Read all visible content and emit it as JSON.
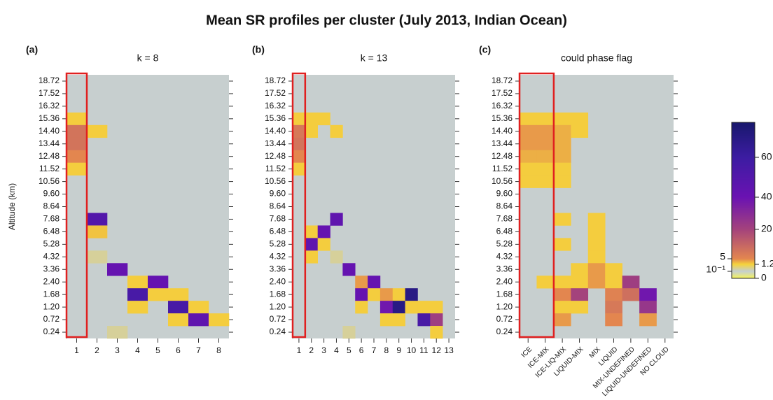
{
  "title": "Mean SR profiles per cluster (July 2013, Indian Ocean)",
  "chart_data": [
    {
      "type": "heatmap",
      "panel_label": "(a)",
      "title": "k = 8",
      "ylabel": "Altitude (km)",
      "categories": [
        1,
        2,
        3,
        4,
        5,
        6,
        7,
        8
      ],
      "rows": [
        "18.72",
        "17.52",
        "16.32",
        "15.36",
        "14.40",
        "13.44",
        "12.48",
        "11.52",
        "10.56",
        "9.60",
        "8.64",
        "7.68",
        "6.48",
        "5.28",
        "4.32",
        "3.36",
        "2.40",
        "1.68",
        "1.20",
        "0.72",
        "0.24"
      ],
      "values": [
        [
          null,
          null,
          null,
          null,
          null,
          null,
          null,
          null
        ],
        [
          null,
          null,
          null,
          null,
          null,
          null,
          null,
          null
        ],
        [
          null,
          null,
          null,
          null,
          null,
          null,
          null,
          null
        ],
        [
          1.5,
          null,
          null,
          null,
          null,
          null,
          null,
          null
        ],
        [
          9,
          1.5,
          null,
          null,
          null,
          null,
          null,
          null
        ],
        [
          9,
          null,
          null,
          null,
          null,
          null,
          null,
          null
        ],
        [
          5,
          null,
          null,
          null,
          null,
          null,
          null,
          null
        ],
        [
          1.5,
          null,
          null,
          null,
          null,
          null,
          null,
          null
        ],
        [
          null,
          null,
          null,
          null,
          null,
          null,
          null,
          null
        ],
        [
          null,
          null,
          null,
          null,
          null,
          null,
          null,
          null
        ],
        [
          null,
          null,
          null,
          null,
          null,
          null,
          null,
          null
        ],
        [
          null,
          50,
          null,
          null,
          null,
          null,
          null,
          null
        ],
        [
          null,
          2,
          null,
          null,
          null,
          null,
          null,
          null
        ],
        [
          null,
          null,
          null,
          null,
          null,
          null,
          null,
          null
        ],
        [
          null,
          0.5,
          null,
          null,
          null,
          null,
          null,
          null
        ],
        [
          null,
          null,
          42,
          null,
          null,
          null,
          null,
          null
        ],
        [
          null,
          null,
          null,
          1.5,
          42,
          null,
          null,
          null
        ],
        [
          null,
          null,
          null,
          55,
          1.5,
          1.5,
          null,
          null
        ],
        [
          null,
          null,
          null,
          1.5,
          null,
          55,
          1.5,
          null
        ],
        [
          null,
          null,
          null,
          null,
          null,
          1.5,
          45,
          1.5
        ],
        [
          null,
          null,
          0.5,
          null,
          null,
          null,
          null,
          null
        ]
      ]
    },
    {
      "type": "heatmap",
      "panel_label": "(b)",
      "title": "k = 13",
      "categories": [
        1,
        2,
        3,
        4,
        5,
        6,
        7,
        8,
        9,
        10,
        11,
        12,
        13
      ],
      "rows": [
        "18.72",
        "17.52",
        "16.32",
        "15.36",
        "14.40",
        "13.44",
        "12.48",
        "11.52",
        "10.56",
        "9.60",
        "8.64",
        "7.68",
        "6.48",
        "5.28",
        "4.32",
        "3.36",
        "2.40",
        "1.68",
        "1.20",
        "0.72",
        "0.24"
      ],
      "values": [
        [
          null,
          null,
          null,
          null,
          null,
          null,
          null,
          null,
          null,
          null,
          null,
          null,
          null
        ],
        [
          null,
          null,
          null,
          null,
          null,
          null,
          null,
          null,
          null,
          null,
          null,
          null,
          null
        ],
        [
          null,
          null,
          null,
          null,
          null,
          null,
          null,
          null,
          null,
          null,
          null,
          null,
          null
        ],
        [
          1.5,
          1.5,
          1.5,
          null,
          null,
          null,
          null,
          null,
          null,
          null,
          null,
          null,
          null
        ],
        [
          8,
          1.5,
          null,
          1.5,
          null,
          null,
          null,
          null,
          null,
          null,
          null,
          null,
          null
        ],
        [
          9,
          null,
          null,
          null,
          null,
          null,
          null,
          null,
          null,
          null,
          null,
          null,
          null
        ],
        [
          5,
          null,
          null,
          null,
          null,
          null,
          null,
          null,
          null,
          null,
          null,
          null,
          null
        ],
        [
          1.5,
          null,
          null,
          null,
          null,
          null,
          null,
          null,
          null,
          null,
          null,
          null,
          null
        ],
        [
          null,
          null,
          null,
          null,
          null,
          null,
          null,
          null,
          null,
          null,
          null,
          null,
          null
        ],
        [
          null,
          null,
          null,
          null,
          null,
          null,
          null,
          null,
          null,
          null,
          null,
          null,
          null
        ],
        [
          null,
          null,
          null,
          null,
          null,
          null,
          null,
          null,
          null,
          null,
          null,
          null,
          null
        ],
        [
          null,
          null,
          null,
          45,
          null,
          null,
          null,
          null,
          null,
          null,
          null,
          null,
          null
        ],
        [
          null,
          1.5,
          42,
          null,
          null,
          null,
          null,
          null,
          null,
          null,
          null,
          null,
          null
        ],
        [
          null,
          45,
          1.5,
          null,
          null,
          null,
          null,
          null,
          null,
          null,
          null,
          null,
          null
        ],
        [
          null,
          1.5,
          null,
          0.5,
          null,
          null,
          null,
          null,
          null,
          null,
          null,
          null,
          null
        ],
        [
          null,
          null,
          null,
          null,
          42,
          null,
          null,
          null,
          null,
          null,
          null,
          null,
          null
        ],
        [
          null,
          null,
          null,
          null,
          null,
          4,
          42,
          null,
          null,
          null,
          null,
          null,
          null
        ],
        [
          null,
          null,
          null,
          null,
          null,
          42,
          1.5,
          4,
          1.5,
          70,
          null,
          null,
          null
        ],
        [
          null,
          null,
          null,
          null,
          null,
          1.5,
          null,
          38,
          70,
          1.5,
          1.5,
          1.5,
          null
        ],
        [
          null,
          null,
          null,
          null,
          null,
          null,
          null,
          1.5,
          1.5,
          null,
          55,
          22,
          null
        ],
        [
          null,
          null,
          null,
          null,
          0.5,
          null,
          null,
          null,
          null,
          null,
          null,
          1.5,
          null
        ]
      ]
    },
    {
      "type": "heatmap",
      "panel_label": "(c)",
      "title": "could phase flag",
      "categories": [
        "ICE",
        "ICE-MIX",
        "ICE-LIQ-MIX",
        "LIQUID-MIX",
        "MIX",
        "LIQUID",
        "MIX-UNDEFINED",
        "LIQUID-UNDEFINED",
        "NO CLOUD"
      ],
      "rows": [
        "18.72",
        "17.52",
        "16.32",
        "15.36",
        "14.40",
        "13.44",
        "12.48",
        "11.52",
        "10.56",
        "9.60",
        "8.64",
        "7.68",
        "6.48",
        "5.28",
        "4.32",
        "3.36",
        "2.40",
        "1.68",
        "1.20",
        "0.72",
        "0.24"
      ],
      "values": [
        [
          null,
          null,
          null,
          null,
          null,
          null,
          null,
          null,
          null
        ],
        [
          null,
          null,
          null,
          null,
          null,
          null,
          null,
          null,
          null
        ],
        [
          null,
          null,
          null,
          null,
          null,
          null,
          null,
          null,
          null
        ],
        [
          1.5,
          1.5,
          1.5,
          1.5,
          null,
          null,
          null,
          null,
          null
        ],
        [
          4,
          4,
          3,
          1.5,
          null,
          null,
          null,
          null,
          null
        ],
        [
          4,
          4,
          3,
          null,
          null,
          null,
          null,
          null,
          null
        ],
        [
          3,
          3,
          3,
          null,
          null,
          null,
          null,
          null,
          null
        ],
        [
          1.5,
          1.5,
          1.5,
          null,
          null,
          null,
          null,
          null,
          null
        ],
        [
          1.5,
          1.5,
          1.5,
          null,
          null,
          null,
          null,
          null,
          null
        ],
        [
          null,
          null,
          null,
          null,
          null,
          null,
          null,
          null,
          null
        ],
        [
          null,
          null,
          null,
          null,
          null,
          null,
          null,
          null,
          null
        ],
        [
          null,
          null,
          1.5,
          null,
          1.5,
          null,
          null,
          null,
          null
        ],
        [
          null,
          null,
          null,
          null,
          1.5,
          null,
          null,
          null,
          null
        ],
        [
          null,
          null,
          1.5,
          null,
          1.5,
          null,
          null,
          null,
          null
        ],
        [
          null,
          null,
          null,
          null,
          1.5,
          null,
          null,
          null,
          null
        ],
        [
          null,
          null,
          null,
          1.5,
          4,
          1.5,
          null,
          null,
          null
        ],
        [
          null,
          1.5,
          1.5,
          1.5,
          4,
          1.5,
          22,
          null,
          null
        ],
        [
          null,
          null,
          5,
          20,
          null,
          6,
          10,
          38,
          null
        ],
        [
          null,
          null,
          1.5,
          1.5,
          null,
          8,
          null,
          25,
          null
        ],
        [
          null,
          null,
          4,
          null,
          null,
          5,
          null,
          4,
          null
        ],
        [
          null,
          null,
          null,
          null,
          null,
          null,
          null,
          null,
          null
        ]
      ]
    }
  ],
  "colorbar": {
    "clim": [
      0,
      78
    ],
    "color_stops": [
      {
        "value": 0,
        "color": "#f6f45a"
      },
      {
        "value": 0.1,
        "color": "#c4cfd0"
      },
      {
        "value": 1.2,
        "color": "#f5d33c"
      },
      {
        "value": 5,
        "color": "#e3864f"
      },
      {
        "value": 20,
        "color": "#a4437c"
      },
      {
        "value": 40,
        "color": "#6a12b2"
      },
      {
        "value": 60,
        "color": "#3c1ca2"
      },
      {
        "value": 78,
        "color": "#18186c"
      }
    ],
    "right_ticks": [
      60,
      40,
      20,
      1.2,
      0
    ],
    "left_ticks": [
      5,
      {
        "value": 0.1,
        "label": "10⁻¹"
      }
    ]
  }
}
